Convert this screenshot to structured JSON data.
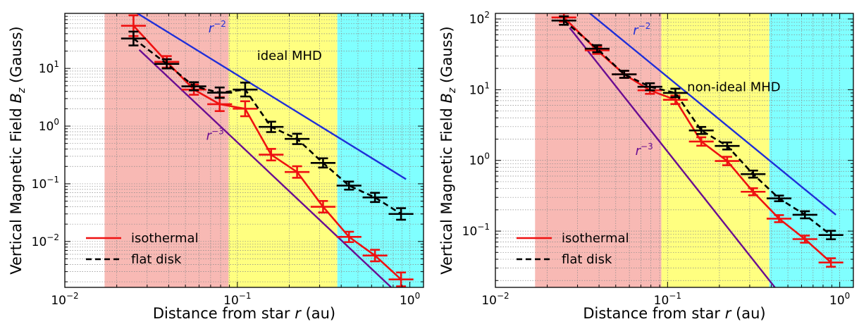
{
  "chart_data": [
    {
      "type": "line",
      "title": "",
      "xlabel": "Distance from star r (au)",
      "ylabel": "Vertical Magnetic Field Bz (Gauss)",
      "xscale": "log",
      "yscale": "log",
      "xlim": [
        0.01,
        1.2
      ],
      "ylim": [
        0.0016,
        90
      ],
      "xticks": [
        {
          "value": 0.01,
          "label": "10^-2"
        },
        {
          "value": 0.1,
          "label": "10^-1"
        },
        {
          "value": 1,
          "label": "10^0"
        }
      ],
      "yticks": [
        {
          "value": 0.01,
          "label": "10^-2"
        },
        {
          "value": 0.1,
          "label": "10^-1"
        },
        {
          "value": 1,
          "label": "10^0"
        },
        {
          "value": 10,
          "label": "10^1"
        }
      ],
      "grid": true,
      "bands": [
        {
          "x0": 0.017,
          "x1": 0.089,
          "color": "#f8b9b4"
        },
        {
          "x0": 0.089,
          "x1": 0.38,
          "color": "#ffff80"
        },
        {
          "x0": 0.38,
          "x1": 1.2,
          "color": "#80ffff"
        }
      ],
      "region_label": {
        "text": "ideal MHD",
        "x": 0.13,
        "y": 14
      },
      "reference_lines": [
        {
          "label": "r^-2",
          "color": "#1f2fd8",
          "x": [
            0.02,
            0.95
          ],
          "y": [
            150,
            0.12
          ],
          "label_x": 0.068,
          "label_y": 42
        },
        {
          "label": "r^-3",
          "color": "#6a0d91",
          "x": [
            0.027,
            0.78
          ],
          "y": [
            21,
            0.0016
          ],
          "label_x": 0.066,
          "label_y": 0.58
        }
      ],
      "series": [
        {
          "name": "isothermal",
          "color": "#ee1111",
          "dash": false,
          "x": [
            0.025,
            0.039,
            0.056,
            0.079,
            0.111,
            0.157,
            0.222,
            0.314,
            0.444,
            0.628,
            0.889
          ],
          "y": [
            55,
            13,
            4.3,
            2.4,
            2.0,
            0.32,
            0.16,
            0.04,
            0.012,
            0.0057,
            0.0022
          ],
          "yerr": [
            0.18,
            0.1,
            0.09,
            0.12,
            0.13,
            0.1,
            0.1,
            0.1,
            0.09,
            0.1,
            0.12
          ]
        },
        {
          "name": "flat disk",
          "color": "#000000",
          "dash": true,
          "x": [
            0.025,
            0.039,
            0.056,
            0.079,
            0.111,
            0.157,
            0.222,
            0.314,
            0.444,
            0.628,
            0.889
          ],
          "y": [
            33,
            12,
            4.9,
            3.8,
            4.3,
            0.97,
            0.6,
            0.23,
            0.093,
            0.058,
            0.03
          ],
          "yerr": [
            0.12,
            0.08,
            0.07,
            0.09,
            0.12,
            0.09,
            0.09,
            0.08,
            0.07,
            0.08,
            0.1
          ]
        }
      ]
    },
    {
      "type": "line",
      "title": "",
      "xlabel": "Distance from star r (au)",
      "ylabel": "Vertical Magnetic Field Bz (Gauss)",
      "xscale": "log",
      "yscale": "log",
      "xlim": [
        0.01,
        1.2
      ],
      "ylim": [
        0.016,
        120
      ],
      "xticks": [
        {
          "value": 0.01,
          "label": "10^-2"
        },
        {
          "value": 0.1,
          "label": "10^-1"
        },
        {
          "value": 1,
          "label": "10^0"
        }
      ],
      "yticks": [
        {
          "value": 0.1,
          "label": "10^-1"
        },
        {
          "value": 1,
          "label": "10^0"
        },
        {
          "value": 10,
          "label": "10^1"
        },
        {
          "value": 100,
          "label": "10^2"
        }
      ],
      "grid": true,
      "bands": [
        {
          "x0": 0.017,
          "x1": 0.092,
          "color": "#f8b9b4"
        },
        {
          "x0": 0.092,
          "x1": 0.39,
          "color": "#ffff80"
        },
        {
          "x0": 0.39,
          "x1": 1.2,
          "color": "#80ffff"
        }
      ],
      "region_label": {
        "text": "non-ideal MHD",
        "x": 0.13,
        "y": 9.5
      },
      "reference_lines": [
        {
          "label": "r^-2",
          "color": "#1f2fd8",
          "x": [
            0.025,
            0.95
          ],
          "y": [
            240,
            0.17
          ],
          "label_x": 0.063,
          "label_y": 60
        },
        {
          "label": "r^-3",
          "color": "#6a0d91",
          "x": [
            0.027,
            0.42
          ],
          "y": [
            75,
            0.016
          ],
          "label_x": 0.065,
          "label_y": 1.2
        }
      ],
      "series": [
        {
          "name": "isothermal",
          "color": "#ee1111",
          "dash": false,
          "x": [
            0.025,
            0.039,
            0.056,
            0.079,
            0.111,
            0.157,
            0.222,
            0.314,
            0.444,
            0.628,
            0.889
          ],
          "y": [
            105,
            36,
            16.5,
            9.8,
            7.2,
            1.85,
            0.98,
            0.36,
            0.15,
            0.077,
            0.036
          ],
          "yerr": [
            0.06,
            0.05,
            0.05,
            0.05,
            0.06,
            0.06,
            0.06,
            0.05,
            0.05,
            0.05,
            0.06
          ]
        },
        {
          "name": "flat disk",
          "color": "#000000",
          "dash": true,
          "x": [
            0.025,
            0.039,
            0.056,
            0.079,
            0.111,
            0.157,
            0.222,
            0.314,
            0.444,
            0.628,
            0.889
          ],
          "y": [
            95,
            38,
            16.5,
            11,
            9.0,
            2.65,
            1.6,
            0.64,
            0.29,
            0.17,
            0.088
          ],
          "yerr": [
            0.06,
            0.05,
            0.05,
            0.05,
            0.06,
            0.05,
            0.05,
            0.05,
            0.04,
            0.05,
            0.06
          ]
        }
      ]
    }
  ]
}
